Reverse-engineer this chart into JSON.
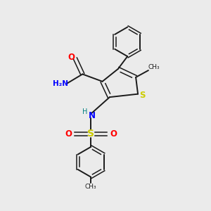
{
  "bg_color": "#ebebeb",
  "bond_color": "#1a1a1a",
  "S_color": "#cccc00",
  "N_color": "#0000ff",
  "O_color": "#ff0000",
  "H_color": "#008080",
  "figsize": [
    3.0,
    3.0
  ],
  "dpi": 100,
  "xlim": [
    0,
    10
  ],
  "ylim": [
    0,
    10
  ]
}
